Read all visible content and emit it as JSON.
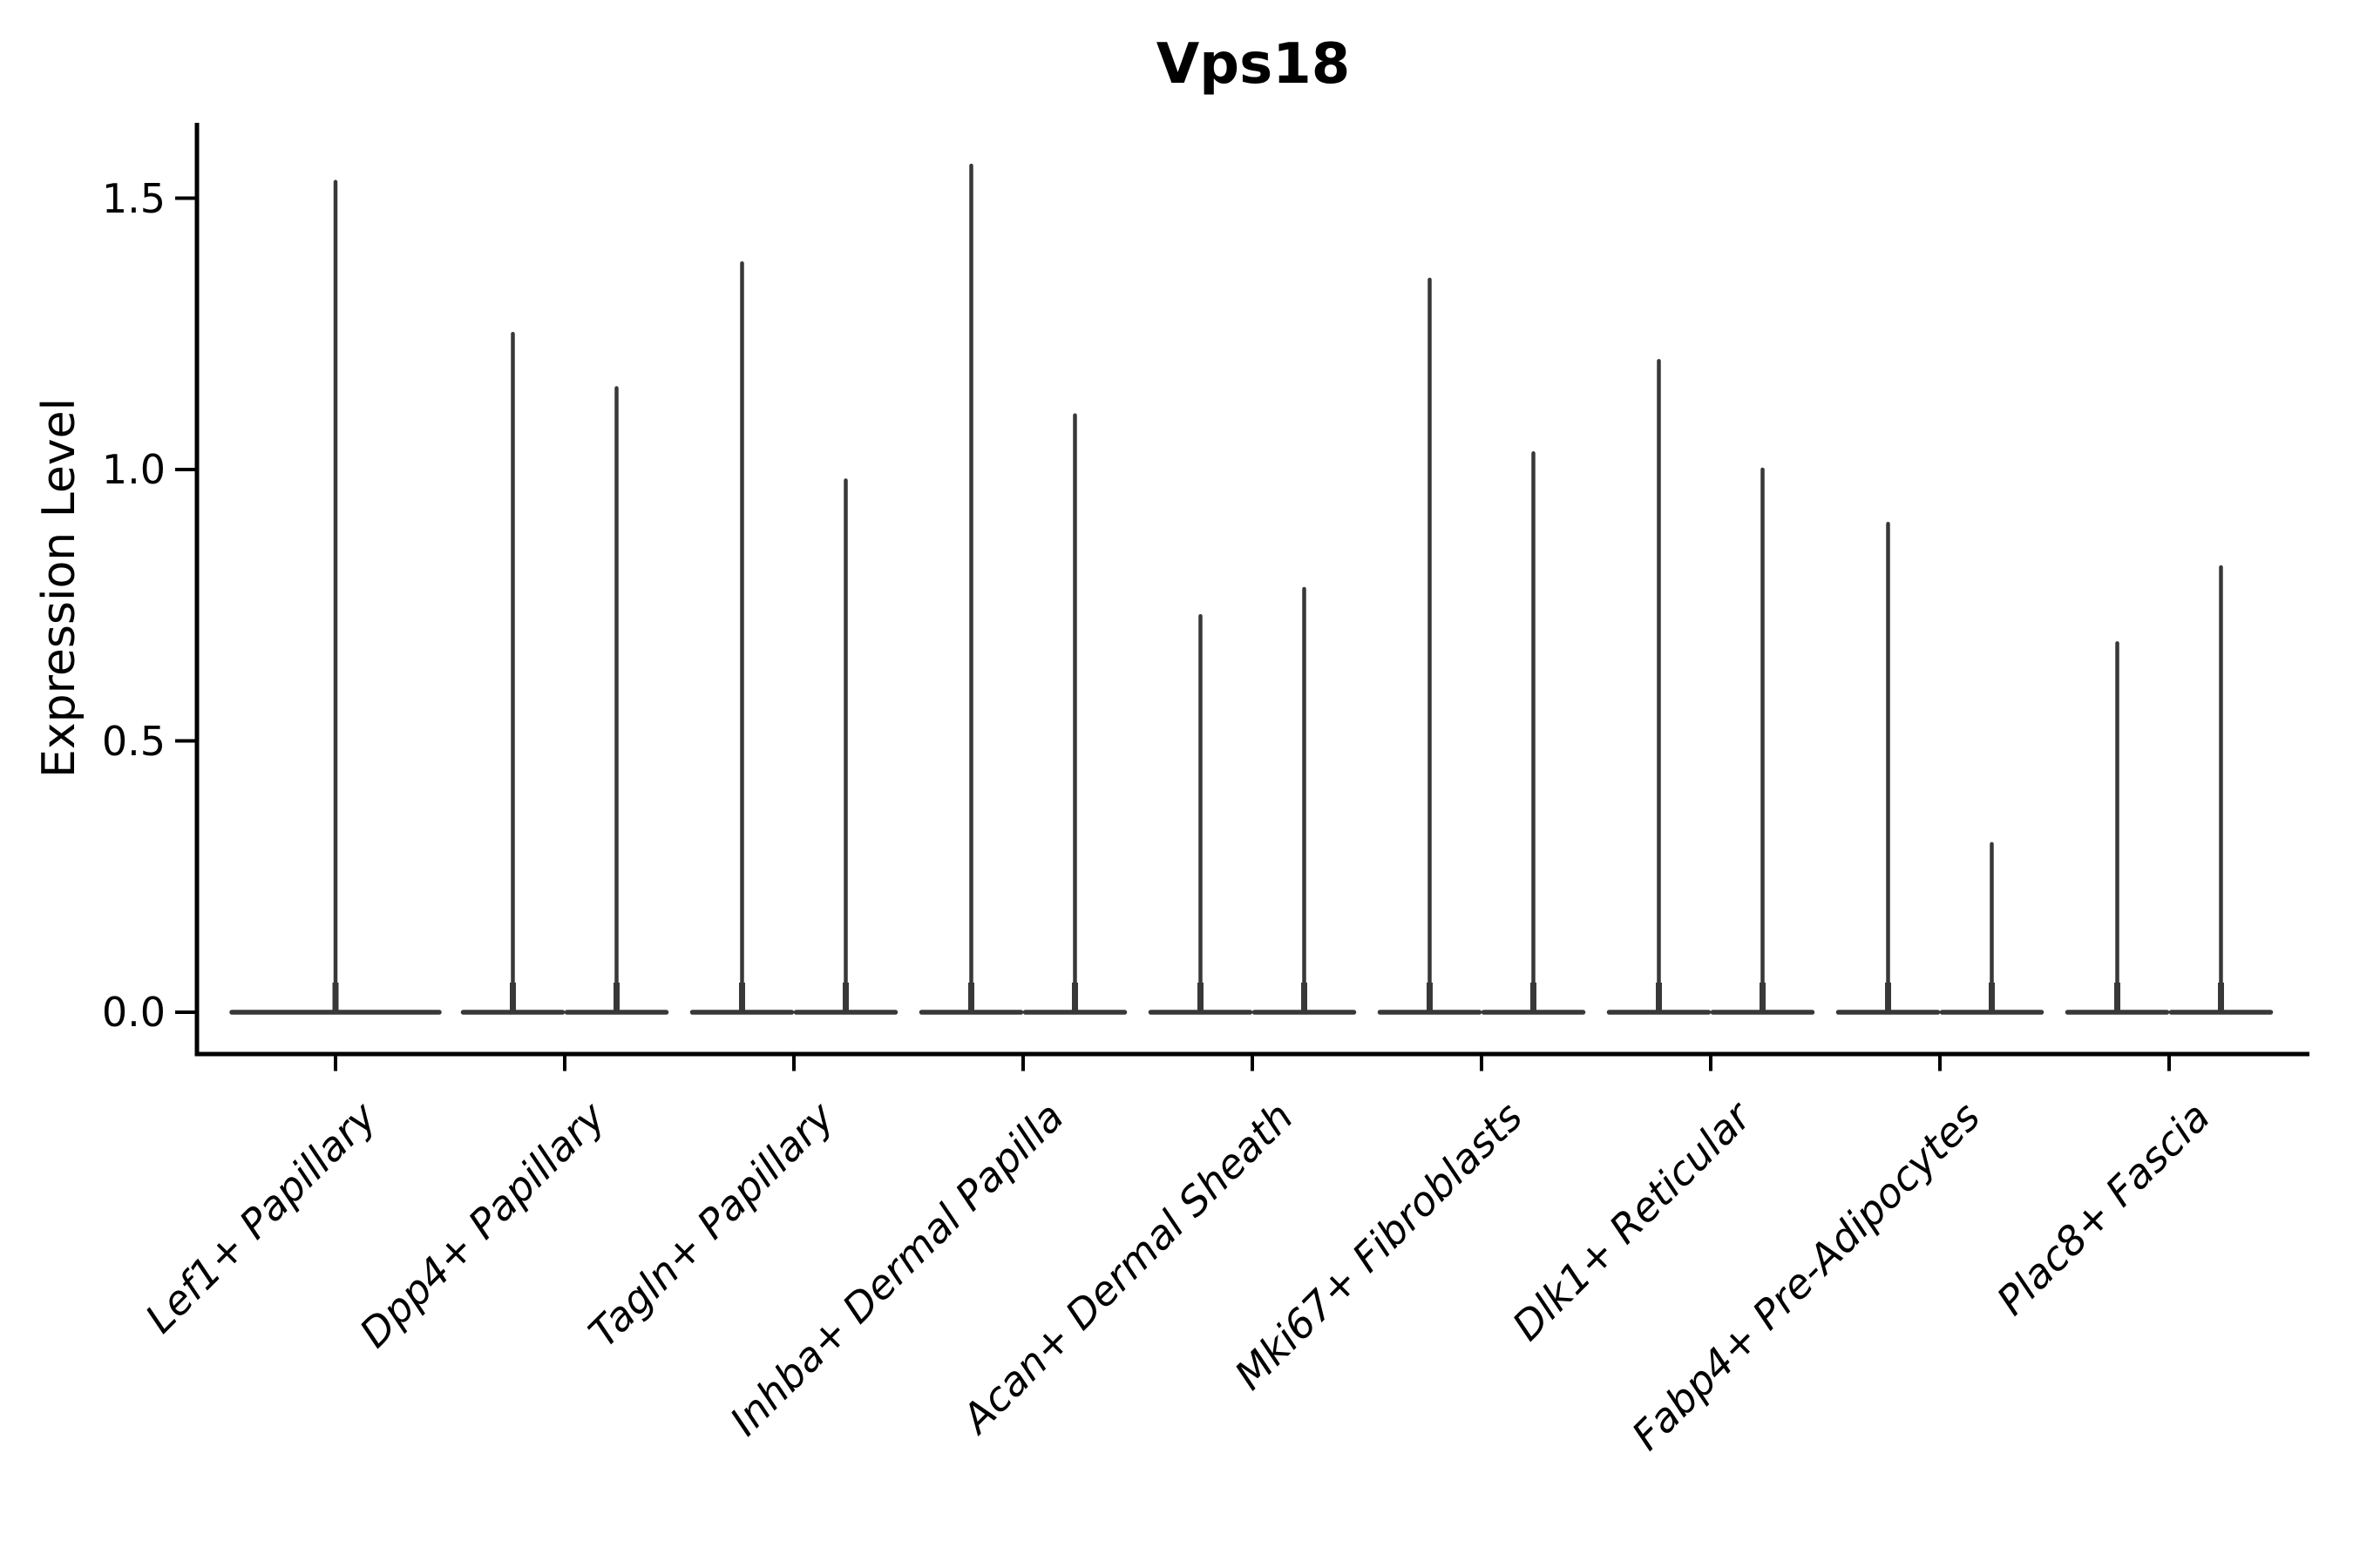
{
  "title": "Vps18",
  "y_axis": {
    "label": "Expression Level",
    "tick_labels": [
      "0.0",
      "0.5",
      "1.0",
      "1.5"
    ]
  },
  "x_axis": {
    "tick_labels": [
      "Lef1+ Papillary",
      "Dpp4+ Papillary",
      "Tagln+ Papillary",
      "Inhba+ Dermal Papilla",
      "Acan+ Dermal Sheath",
      "Mki67+ Fibroblasts",
      "Dlk1+ Reticular",
      "Fabp4+ Pre-Adipocytes",
      "Plac8+ Fascia"
    ]
  },
  "colors": {
    "violin": "#383838",
    "axis": "#000000",
    "text": "#000000",
    "background": "#ffffff"
  },
  "chart_data": {
    "type": "violin",
    "title": "Vps18",
    "xlabel": "",
    "ylabel": "Expression Level",
    "ylim": [
      -0.08,
      1.64
    ],
    "yticks": [
      0.0,
      0.5,
      1.0,
      1.5
    ],
    "grid": false,
    "legend": "none",
    "orientation": "vertical",
    "description": "Thin violin plots; bulk of expression density sits at 0 (flat wide base), with a narrow spike reaching the maximum expression value. Most categories show two violins side by side.",
    "categories": [
      "Lef1+ Papillary",
      "Dpp4+ Papillary",
      "Tagln+ Papillary",
      "Inhba+ Dermal Papilla",
      "Acan+ Dermal Sheath",
      "Mki67+ Fibroblasts",
      "Dlk1+ Reticular",
      "Fabp4+ Pre-Adipocytes",
      "Plac8+ Fascia"
    ],
    "violins": [
      {
        "category": "Lef1+ Papillary",
        "density_bulk_at": 0.0,
        "peaks": [
          1.53
        ]
      },
      {
        "category": "Dpp4+ Papillary",
        "density_bulk_at": 0.0,
        "peaks": [
          1.25,
          1.15
        ]
      },
      {
        "category": "Tagln+ Papillary",
        "density_bulk_at": 0.0,
        "peaks": [
          1.38,
          0.98
        ]
      },
      {
        "category": "Inhba+ Dermal Papilla",
        "density_bulk_at": 0.0,
        "peaks": [
          1.56,
          1.1
        ]
      },
      {
        "category": "Acan+ Dermal Sheath",
        "density_bulk_at": 0.0,
        "peaks": [
          0.73,
          0.78
        ]
      },
      {
        "category": "Mki67+ Fibroblasts",
        "density_bulk_at": 0.0,
        "peaks": [
          1.35,
          1.03
        ]
      },
      {
        "category": "Dlk1+ Reticular",
        "density_bulk_at": 0.0,
        "peaks": [
          1.2,
          1.0
        ]
      },
      {
        "category": "Fabp4+ Pre-Adipocytes",
        "density_bulk_at": 0.0,
        "peaks": [
          0.9,
          0.31
        ]
      },
      {
        "category": "Plac8+ Fascia",
        "density_bulk_at": 0.0,
        "peaks": [
          0.68,
          0.82
        ]
      }
    ]
  }
}
